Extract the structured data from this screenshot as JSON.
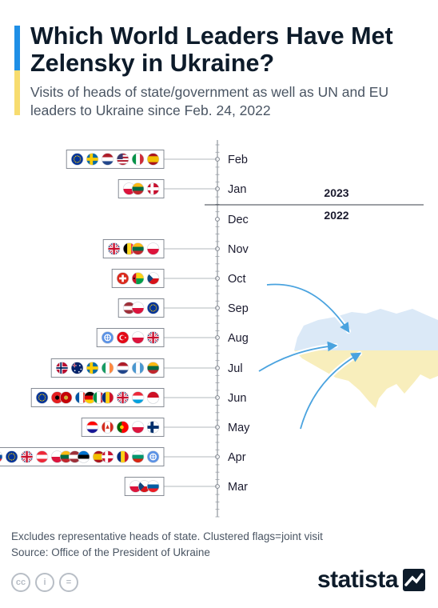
{
  "header": {
    "title": "Which World Leaders Have Met Zelensky in Ukraine?",
    "subtitle": "Visits of heads of state/government as well as UN and EU leaders to Ukraine since Feb. 24, 2022"
  },
  "footer": {
    "note": "Excludes representative heads of state. Clustered flags=joint visit",
    "source": "Source: Office of the President of Ukraine",
    "brand": "statista"
  },
  "colors": {
    "accent_blue": "#1f8fe6",
    "accent_yellow": "#f7dc6f",
    "map_blue": "#dbe9f7",
    "map_yellow": "#f8eebc",
    "arrow": "#4aa3df"
  },
  "chart_data": {
    "type": "timeline",
    "year_labels": {
      "upper": "2023",
      "lower": "2022"
    },
    "months": [
      "Feb",
      "Jan",
      "Dec",
      "Nov",
      "Oct",
      "Sep",
      "Aug",
      "Jul",
      "Jun",
      "May",
      "Apr",
      "Mar"
    ],
    "visits": [
      {
        "month": "Feb",
        "groups": [
          [
            "eu"
          ],
          [
            "sweden"
          ],
          [
            "netherlands"
          ],
          [
            "usa"
          ],
          [
            "italy"
          ],
          [
            "spain"
          ]
        ]
      },
      {
        "month": "Jan",
        "groups": [
          [
            "poland",
            "lithuania"
          ],
          [
            "denmark"
          ]
        ]
      },
      {
        "month": "Dec",
        "groups": []
      },
      {
        "month": "Nov",
        "groups": [
          [
            "uk"
          ],
          [
            "belgium",
            "lithuania"
          ],
          [
            "poland"
          ]
        ]
      },
      {
        "month": "Oct",
        "groups": [
          [
            "switzerland"
          ],
          [
            "guinea-bissau"
          ],
          [
            "czechia"
          ]
        ]
      },
      {
        "month": "Sep",
        "groups": [
          [
            "latvia",
            "poland"
          ],
          [
            "eu"
          ]
        ]
      },
      {
        "month": "Aug",
        "groups": [
          [
            "un"
          ],
          [
            "turkey"
          ],
          [
            "poland"
          ],
          [
            "uk"
          ]
        ]
      },
      {
        "month": "Jul",
        "groups": [
          [
            "norway"
          ],
          [
            "australia"
          ],
          [
            "sweden"
          ],
          [
            "ireland"
          ],
          [
            "netherlands"
          ],
          [
            "guatemala"
          ],
          [
            "lithuania"
          ]
        ]
      },
      {
        "month": "Jun",
        "groups": [
          [
            "eu"
          ],
          [
            "albania",
            "montenegro"
          ],
          [
            "france",
            "germany",
            "italy",
            "romania"
          ],
          [
            "uk"
          ],
          [
            "luxembourg"
          ],
          [
            "indonesia"
          ]
        ]
      },
      {
        "month": "May",
        "groups": [
          [
            "croatia"
          ],
          [
            "canada"
          ],
          [
            "portugal"
          ],
          [
            "poland"
          ],
          [
            "finland"
          ]
        ]
      },
      {
        "month": "Apr",
        "groups": [
          [
            "slovakia"
          ],
          [
            "eu"
          ],
          [
            "uk"
          ],
          [
            "austria"
          ],
          [
            "poland",
            "lithuania",
            "latvia",
            "estonia"
          ],
          [
            "spain",
            "denmark"
          ],
          [
            "romania"
          ],
          [
            "bulgaria"
          ],
          [
            "un"
          ]
        ]
      },
      {
        "month": "Mar",
        "groups": [
          [
            "poland",
            "czechia",
            "slovenia"
          ]
        ]
      }
    ]
  }
}
